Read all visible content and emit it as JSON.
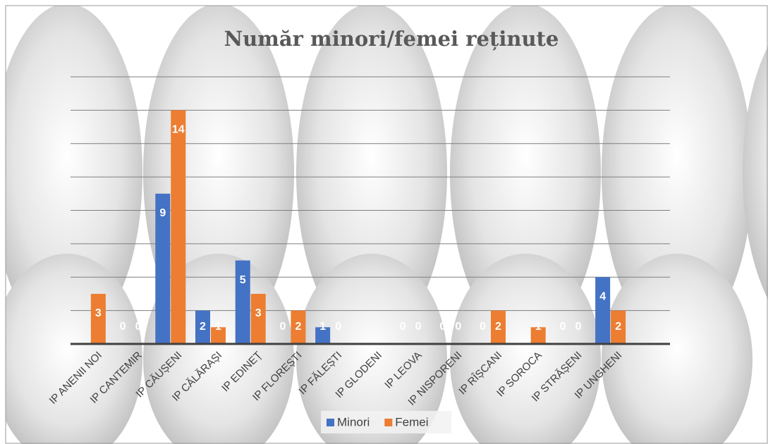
{
  "chart_data": {
    "type": "bar",
    "title": "Număr minori/femei reținute",
    "categories": [
      "IP ANENII NOI",
      "IP CANTEMIR",
      "IP CĂUȘENI",
      "IP CĂLĂRAȘI",
      "IP EDINEȚ",
      "IP FLOREȘTI",
      "IP FĂLEȘTI",
      "IP GLODENI",
      "IP LEOVA",
      "IP NISPORENI",
      "IP RÎȘCANI",
      "IP SOROCA",
      "IP STRĂȘENI",
      "IP UNGHENI"
    ],
    "series": [
      {
        "name": "Minori",
        "color": "#4472c4",
        "values": [
          null,
          0,
          9,
          2,
          5,
          0,
          1,
          null,
          0,
          0,
          0,
          null,
          0,
          4
        ]
      },
      {
        "name": "Femei",
        "color": "#ed7d31",
        "values": [
          3,
          0,
          14,
          1,
          3,
          2,
          0,
          null,
          0,
          0,
          2,
          1,
          0,
          2
        ]
      }
    ],
    "ylim": [
      0,
      16
    ],
    "yticks": [
      0,
      2,
      4,
      6,
      8,
      10,
      12,
      14,
      16
    ],
    "grid": true,
    "legend": "bottom"
  }
}
